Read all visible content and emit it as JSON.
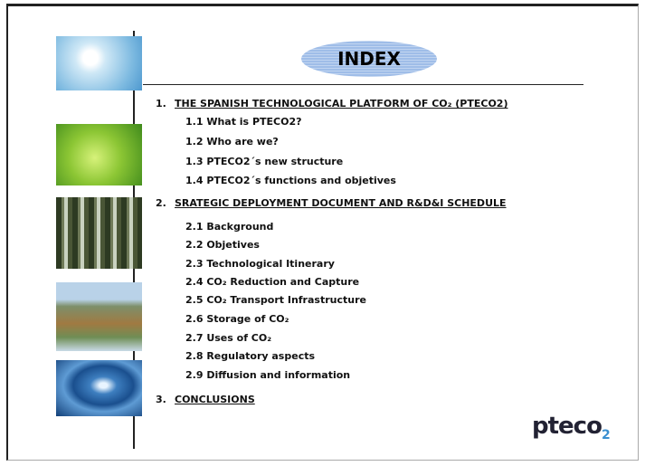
{
  "title": "INDEX",
  "sections": [
    {
      "number": "1.",
      "heading": "THE SPANISH TECHNOLOGICAL PLATFORM OF CO₂ (PTECO2)",
      "items": [
        "1.1 What is PTECO2?",
        "1.2 Who are we?",
        "1.3 PTECO2´s new structure",
        "1.4 PTECO2´s functions and objetives"
      ]
    },
    {
      "number": "2.",
      "heading": "SRATEGIC DEPLOYMENT DOCUMENT AND R&D&I SCHEDULE",
      "items": [
        "2.1 Background",
        "2.2 Objetives",
        "2.3 Technological Itinerary",
        "2.4 CO₂ Reduction and Capture",
        "2.5 CO₂ Transport Infrastructure",
        "2.6 Storage of CO₂",
        "2.7 Uses of CO₂",
        "2.8 Regulatory aspects",
        "2.9 Diffusion and information"
      ]
    },
    {
      "number": "3.",
      "heading": "CONCLUSIONS",
      "items": []
    }
  ],
  "logo": {
    "text": "pteco",
    "sub": "2"
  }
}
